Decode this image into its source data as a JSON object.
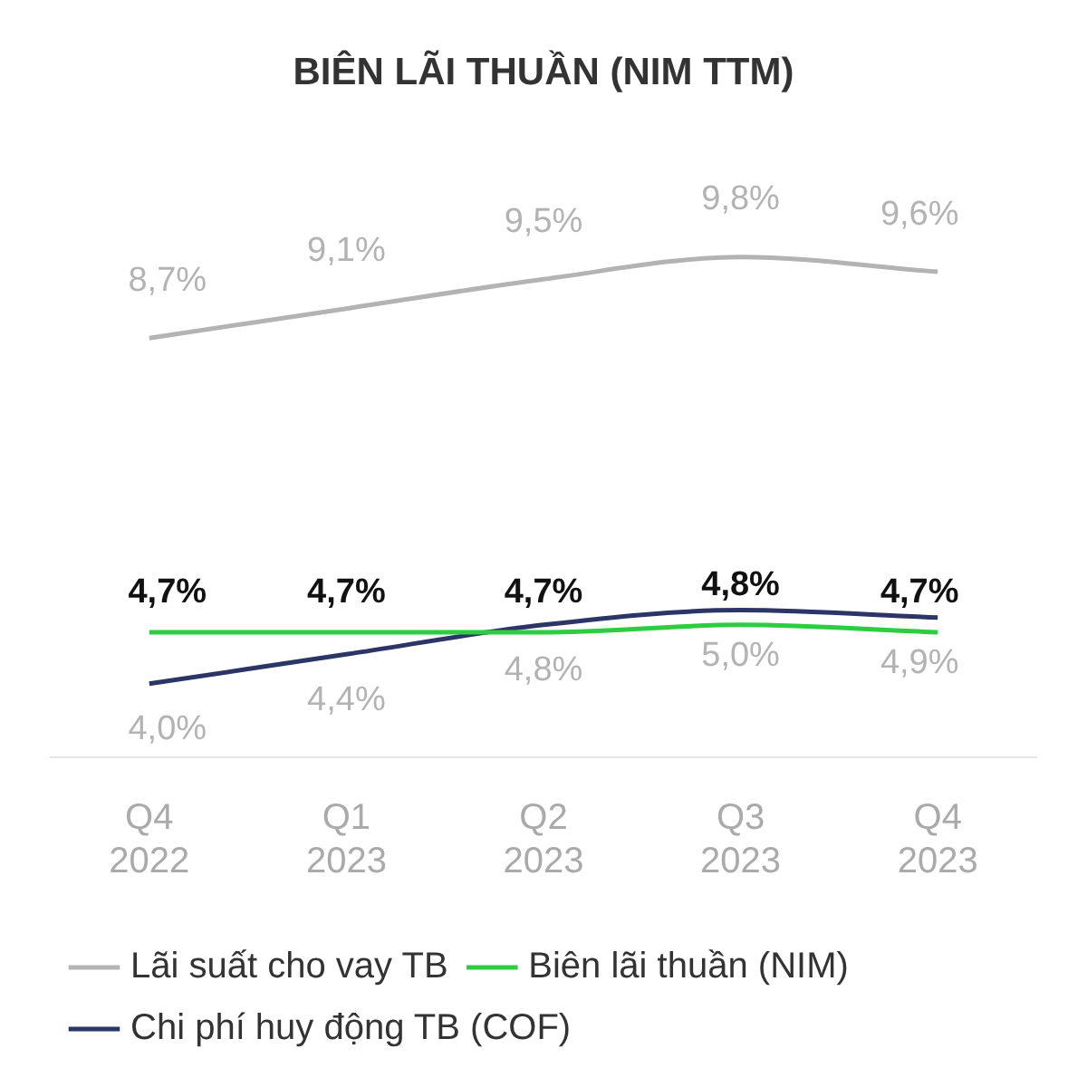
{
  "chart_data": {
    "type": "line",
    "title": "BIÊN LÃI THUẦN (NIM TTM)",
    "categories": [
      "Q4 2022",
      "Q1 2023",
      "Q2 2023",
      "Q3 2023",
      "Q4 2023"
    ],
    "series": [
      {
        "name": "Lãi suất cho vay TB",
        "color": "#b3b3b3",
        "values": [
          8.7,
          9.1,
          9.5,
          9.8,
          9.6
        ],
        "value_labels": [
          "8,7%",
          "9,1%",
          "9,5%",
          "9,8%",
          "9,6%"
        ]
      },
      {
        "name": "Biên lãi thuần (NIM)",
        "color": "#2ecc40",
        "values": [
          4.7,
          4.7,
          4.7,
          4.8,
          4.7
        ],
        "value_labels": [
          "4,7%",
          "4,7%",
          "4,7%",
          "4,8%",
          "4,7%"
        ]
      },
      {
        "name": "Chi phí huy động TB (COF)",
        "color": "#2b3566",
        "values": [
          4.0,
          4.4,
          4.8,
          5.0,
          4.9
        ],
        "value_labels": [
          "4,0%",
          "4,4%",
          "4,8%",
          "5,0%",
          "4,9%"
        ]
      }
    ],
    "grid": false,
    "legend": "bottom",
    "marker": "none",
    "line_style": "solid"
  }
}
